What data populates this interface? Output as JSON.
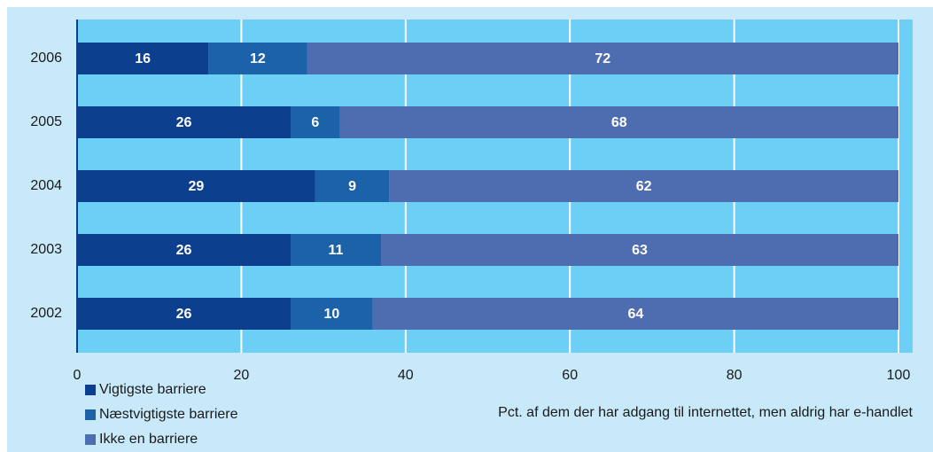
{
  "chart_data": {
    "type": "stacked-barh",
    "categories": [
      "2006",
      "2005",
      "2004",
      "2003",
      "2002"
    ],
    "series": [
      {
        "name": "Vigtigste barriere",
        "color": "#0d3f8f",
        "values": [
          16,
          26,
          29,
          26,
          26
        ]
      },
      {
        "name": "Næstvigtigste barriere",
        "color": "#1b62a8",
        "values": [
          12,
          6,
          9,
          11,
          10
        ]
      },
      {
        "name": "Ikke en barriere",
        "color": "#4e6db0",
        "values": [
          72,
          68,
          62,
          63,
          64
        ]
      }
    ],
    "xlabel": "Pct. af dem der har adgang til internettet, men aldrig har e-handlet",
    "xlim": [
      0,
      100
    ],
    "xticks": [
      0,
      20,
      40,
      60,
      80,
      100
    ],
    "grid": true,
    "legend": "bottom-left"
  }
}
